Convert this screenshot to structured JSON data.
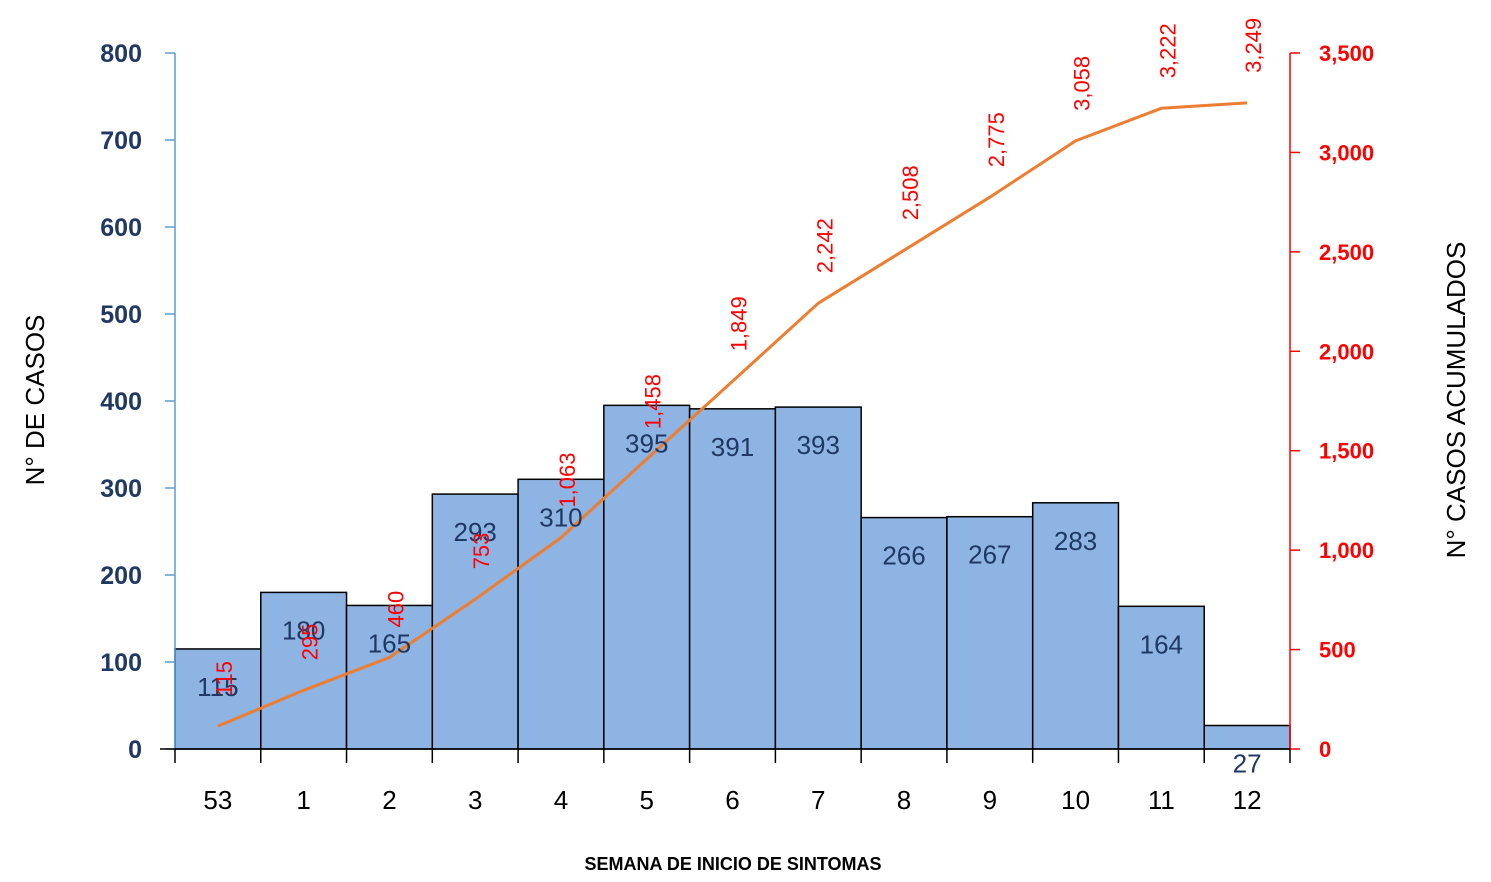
{
  "chart_data": {
    "type": "bar",
    "categories": [
      "53",
      "1",
      "2",
      "3",
      "4",
      "5",
      "6",
      "7",
      "8",
      "9",
      "10",
      "11",
      "12"
    ],
    "series": [
      {
        "type": "bar",
        "axis": "left",
        "values": [
          115,
          180,
          165,
          293,
          310,
          395,
          391,
          393,
          266,
          267,
          283,
          164,
          27
        ],
        "labels": [
          "115",
          "180",
          "165",
          "293",
          "310",
          "395",
          "391",
          "393",
          "266",
          "267",
          "283",
          "164",
          "27"
        ],
        "color": "#8DB4E2"
      },
      {
        "type": "line",
        "axis": "right",
        "values": [
          115,
          295,
          460,
          753,
          1063,
          1458,
          1849,
          2242,
          2508,
          2775,
          3058,
          3222,
          3249
        ],
        "labels": [
          "115",
          "295",
          "460",
          "753",
          "1,063",
          "1,458",
          "1,849",
          "2,242",
          "2,508",
          "2,775",
          "3,058",
          "3,222",
          "3,249"
        ],
        "color": "#ED7D31"
      }
    ],
    "xlabel": "SEMANA DE INICIO DE SINTOMAS",
    "ylabel": "N° DE CASOS",
    "y2label": "N° CASOS ACUMULADOS",
    "ylim": [
      0,
      800
    ],
    "y2lim": [
      0,
      3500
    ],
    "yticks": [
      "0",
      "100",
      "200",
      "300",
      "400",
      "500",
      "600",
      "700",
      "800"
    ],
    "y2ticks": [
      "0",
      "500",
      "1,000",
      "1,500",
      "2,000",
      "2,500",
      "3,000",
      "3,500"
    ],
    "grid": false,
    "legend": "none"
  },
  "colors": {
    "left_axis": "#5B9BD5",
    "left_text": "#1F3864",
    "right_axis": "#FF0000",
    "bar_fill": "#8DB4E2",
    "bar_stroke": "#000000",
    "line": "#ED7D31"
  }
}
